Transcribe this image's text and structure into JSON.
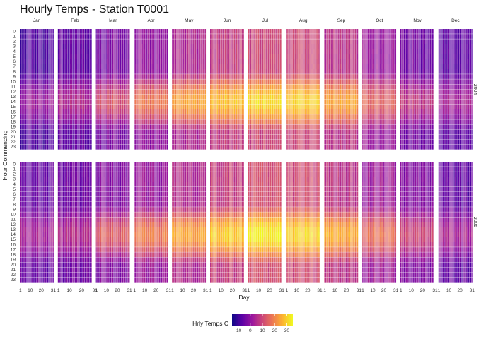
{
  "chart_data": {
    "type": "heatmap",
    "title": "Hourly Temps - Station T0001",
    "xlabel": "Day",
    "ylabel": "Hour Commencing",
    "x_ticks": [
      1,
      10,
      20,
      31
    ],
    "hours": [
      0,
      1,
      2,
      3,
      4,
      5,
      6,
      7,
      8,
      9,
      10,
      11,
      12,
      13,
      14,
      15,
      16,
      17,
      18,
      19,
      20,
      21,
      22,
      23
    ],
    "months": [
      "Jan",
      "Feb",
      "Mar",
      "Apr",
      "May",
      "Jun",
      "Jul",
      "Aug",
      "Sep",
      "Oct",
      "Nov",
      "Dec"
    ],
    "days_in_month": [
      31,
      28,
      31,
      30,
      31,
      30,
      31,
      31,
      30,
      31,
      30,
      31
    ],
    "years": [
      {
        "label": "2004",
        "min_temps": [
          -8,
          -6,
          -3,
          0,
          4,
          8,
          10,
          10,
          6,
          1,
          -4,
          -7
        ],
        "max_temps": [
          2,
          5,
          12,
          18,
          24,
          28,
          31,
          30,
          24,
          15,
          8,
          3
        ]
      },
      {
        "label": "2005",
        "min_temps": [
          -5,
          -4,
          -2,
          1,
          5,
          9,
          11,
          11,
          7,
          2,
          -2,
          -6
        ],
        "max_temps": [
          4,
          6,
          14,
          19,
          25,
          30,
          33,
          31,
          26,
          17,
          10,
          4
        ]
      }
    ],
    "legend": {
      "title": "Hrly Temps C",
      "min": -15,
      "max": 35,
      "ticks": [
        -10,
        0,
        10,
        20,
        30
      ],
      "position": "bottom"
    },
    "colormap": [
      "#0d0887",
      "#5c01a6",
      "#9c179e",
      "#cc4778",
      "#ed7953",
      "#fdb42f",
      "#f0f921"
    ]
  }
}
